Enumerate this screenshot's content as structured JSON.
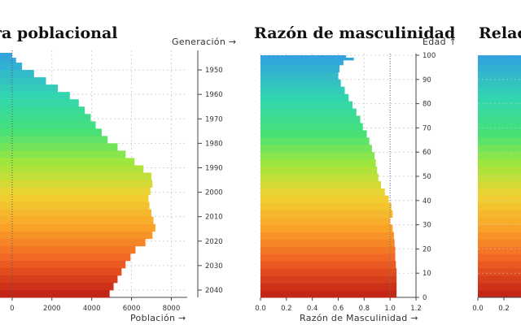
{
  "chart_data": [
    {
      "type": "bar",
      "orientation": "horizontal",
      "title": "ra poblacional",
      "xlabel": "Población →",
      "ylabel": "Generación →",
      "x_ticks": [
        "0",
        "2000",
        "4000",
        "6000",
        "8000"
      ],
      "y_ticks": [
        "1950",
        "1960",
        "1970",
        "1980",
        "1990",
        "2000",
        "2010",
        "2020",
        "2030",
        "2040"
      ],
      "xlim": [
        -1100,
        8800
      ],
      "ylim": [
        2043,
        1942
      ],
      "generation": [
        1943,
        1945,
        1947,
        1950,
        1953,
        1956,
        1959,
        1962,
        1965,
        1968,
        1971,
        1974,
        1977,
        1980,
        1983,
        1986,
        1989,
        1992,
        1995,
        1998,
        2001,
        2004,
        2007,
        2010,
        2013,
        2016,
        2019,
        2022,
        2025,
        2028,
        2031,
        2034,
        2037,
        2040,
        2043
      ],
      "population": [
        0,
        200,
        500,
        1100,
        1700,
        2300,
        2900,
        3350,
        3650,
        3950,
        4200,
        4500,
        4800,
        5300,
        5700,
        6150,
        6600,
        7000,
        7050,
        6950,
        6850,
        6900,
        7000,
        7100,
        7200,
        7050,
        6700,
        6200,
        5950,
        5700,
        5500,
        5300,
        5100,
        4900,
        4600
      ],
      "grid": true
    },
    {
      "type": "bar",
      "orientation": "horizontal",
      "title": "Razón de masculinidad",
      "xlabel": "Razón de Masculinidad →",
      "ylabel": "Edad ↑",
      "x_ticks": [
        "0.0",
        "0.2",
        "0.4",
        "0.6",
        "0.8",
        "1.0",
        "1.2"
      ],
      "y_ticks": [
        "0",
        "10",
        "20",
        "30",
        "40",
        "50",
        "60",
        "70",
        "80",
        "90",
        "100"
      ],
      "xlim": [
        0,
        1.2
      ],
      "ylim": [
        0,
        100
      ],
      "reference_line": 1.0,
      "age": [
        0,
        3,
        6,
        9,
        12,
        15,
        18,
        21,
        24,
        27,
        30,
        33,
        36,
        39,
        42,
        45,
        48,
        51,
        54,
        57,
        60,
        63,
        66,
        69,
        72,
        75,
        78,
        81,
        84,
        87,
        90,
        93,
        96,
        98,
        99
      ],
      "ratio": [
        1.05,
        1.05,
        1.05,
        1.05,
        1.045,
        1.04,
        1.04,
        1.035,
        1.03,
        1.02,
        1.0,
        1.02,
        1.01,
        0.99,
        0.96,
        0.93,
        0.91,
        0.9,
        0.89,
        0.88,
        0.86,
        0.84,
        0.82,
        0.79,
        0.77,
        0.74,
        0.71,
        0.68,
        0.65,
        0.62,
        0.6,
        0.61,
        0.64,
        0.72,
        0.66
      ],
      "grid": true
    },
    {
      "type": "bar",
      "orientation": "horizontal",
      "title": "Relac",
      "x_ticks": [
        "0.0",
        "0.2"
      ],
      "partial": true
    }
  ]
}
